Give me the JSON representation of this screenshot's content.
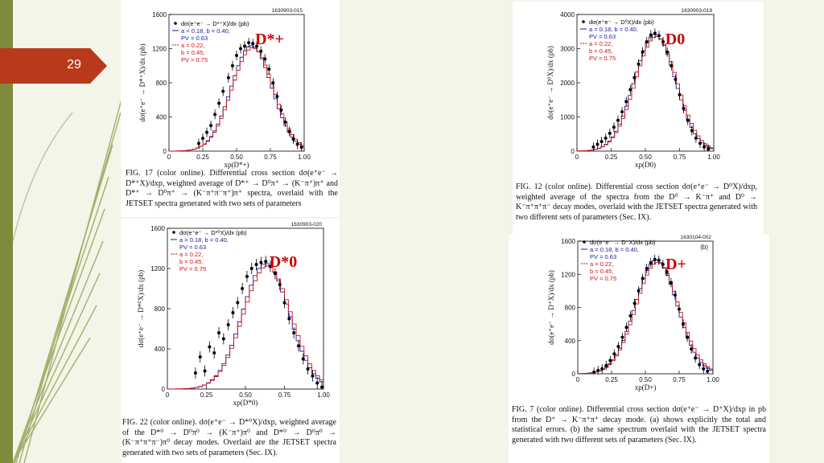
{
  "slide": {
    "number": "29"
  },
  "colors": {
    "badge": "#b83a1b",
    "stripe": "#7f8a3c",
    "bg": "#f3f5e8",
    "data": "#000000",
    "setA": "#1a1aa6",
    "setB": "#d01010",
    "label": "#d00000"
  },
  "legend": {
    "p1": "P",
    "setA": [
      "a = 0.18, b = 0.40,",
      "PV = 0.63"
    ],
    "setB": [
      "a = 0.22,",
      "b = 0.45,",
      "PV = 0.75"
    ]
  },
  "charts": [
    {
      "id": "dstar-plus",
      "code": "1630903-015",
      "corner_label": "D*+",
      "legend_data": "dσ(e⁺e⁻ → D*⁺X)/dx (pb)",
      "ylabel": "dσ(e⁺e⁻ → D*⁺X)/dx (pb)",
      "xlabel": "xp(D*+)",
      "caption": "FIG. 17 (color online). Differential cross section dσ(e⁺e⁻ → D*⁺X)/dxp, weighted average of D*⁺ → D⁰π⁺ → (K⁻π⁺)π⁺ and D*⁺ → D⁰π⁺ → (K⁻π⁺π⁻π⁺)π⁺ spectra, overlaid with the JETSET spectra generated with two sets of parameters",
      "chart_data": {
        "type": "line",
        "xlim": [
          0,
          1
        ],
        "ylim": [
          0,
          1600
        ],
        "xticks": [
          "0",
          "0.25",
          "0.50",
          "0.75",
          "1.00"
        ],
        "yticks": [
          "0",
          "400",
          "800",
          "1200",
          "1600"
        ],
        "data": [
          [
            0.22,
            90
          ],
          [
            0.25,
            150
          ],
          [
            0.28,
            220
          ],
          [
            0.31,
            300
          ],
          [
            0.34,
            430
          ],
          [
            0.37,
            560
          ],
          [
            0.4,
            700
          ],
          [
            0.44,
            860
          ],
          [
            0.47,
            1000
          ],
          [
            0.5,
            1120
          ],
          [
            0.53,
            1200
          ],
          [
            0.56,
            1230
          ],
          [
            0.59,
            1270
          ],
          [
            0.62,
            1260
          ],
          [
            0.65,
            1230
          ],
          [
            0.68,
            1170
          ],
          [
            0.71,
            1080
          ],
          [
            0.74,
            960
          ],
          [
            0.77,
            800
          ],
          [
            0.8,
            640
          ],
          [
            0.83,
            480
          ],
          [
            0.86,
            340
          ],
          [
            0.89,
            230
          ],
          [
            0.92,
            140
          ],
          [
            0.95,
            80
          ],
          [
            0.98,
            45
          ]
        ],
        "curve_peak": 0.61,
        "curve_height": 1235,
        "curve_width": 0.15
      }
    },
    {
      "id": "dzero",
      "code": "1630903-019",
      "corner_label": "D0",
      "legend_data": "dσ(e⁺e⁻ → D⁰X)/dx (pb)",
      "ylabel": "dσ(e⁺e⁻ → D⁰X)/dx (pb)",
      "xlabel": "xp(D0)",
      "caption": "FIG. 12 (color online). Differential cross section dσ(e⁺e⁻ → D⁰X)/dxp, weighted average of the spectra from the D⁰ → K⁻π⁺ and D⁰ → K⁻π⁺π⁺π⁻ decay modes, overlaid with the JETSET spectra generated with two different sets of parameters (Sec. IX).",
      "chart_data": {
        "type": "line",
        "xlim": [
          0,
          1
        ],
        "ylim": [
          0,
          4000
        ],
        "xticks": [
          "0",
          "0.25",
          "0.50",
          "0.75",
          "1.00"
        ],
        "yticks": [
          "0",
          "1000",
          "2000",
          "3000",
          "4000"
        ],
        "data": [
          [
            0.12,
            120
          ],
          [
            0.15,
            200
          ],
          [
            0.18,
            280
          ],
          [
            0.21,
            380
          ],
          [
            0.24,
            520
          ],
          [
            0.27,
            700
          ],
          [
            0.3,
            900
          ],
          [
            0.33,
            1150
          ],
          [
            0.36,
            1450
          ],
          [
            0.39,
            1800
          ],
          [
            0.42,
            2150
          ],
          [
            0.45,
            2550
          ],
          [
            0.48,
            2900
          ],
          [
            0.51,
            3200
          ],
          [
            0.54,
            3400
          ],
          [
            0.57,
            3450
          ],
          [
            0.6,
            3380
          ],
          [
            0.63,
            3200
          ],
          [
            0.66,
            2900
          ],
          [
            0.69,
            2500
          ],
          [
            0.72,
            2100
          ],
          [
            0.75,
            1650
          ],
          [
            0.78,
            1250
          ],
          [
            0.81,
            900
          ],
          [
            0.84,
            600
          ],
          [
            0.87,
            380
          ],
          [
            0.9,
            230
          ],
          [
            0.93,
            120
          ],
          [
            0.96,
            60
          ]
        ],
        "curve_peak": 0.57,
        "curve_height": 3420,
        "curve_width": 0.15
      }
    },
    {
      "id": "dstar-zero",
      "code": "1630903-020",
      "corner_label": "D*0",
      "legend_data": "dσ(e⁺e⁻ → D*⁰X)/dx (pb)",
      "ylabel": "dσ(e⁺e⁻ → D*⁰X)/dx (pb)",
      "xlabel": "xp(D*0)",
      "caption": "FIG. 22 (color online). dσ(e⁺e⁻ → D*⁰X)/dxp, weighted average of the D*⁰ → D⁰π⁰ → (K⁻π⁺)π⁰ and D*⁰ → D⁰π⁰ → (K⁻π⁺π⁺π⁻)π⁰ decay modes. Overlaid are the JETSET spectra generated with two sets of parameters (Sec. IX).",
      "chart_data": {
        "type": "line",
        "xlim": [
          0,
          1
        ],
        "ylim": [
          0,
          1600
        ],
        "xticks": [
          "0",
          "0.25",
          "0.50",
          "0.75",
          "1.00"
        ],
        "yticks": [
          "0",
          "400",
          "800",
          "1200",
          "1600"
        ],
        "data": [
          [
            0.18,
            160
          ],
          [
            0.21,
            320
          ],
          [
            0.24,
            180
          ],
          [
            0.27,
            420
          ],
          [
            0.3,
            360
          ],
          [
            0.33,
            560
          ],
          [
            0.36,
            500
          ],
          [
            0.39,
            640
          ],
          [
            0.42,
            760
          ],
          [
            0.45,
            860
          ],
          [
            0.48,
            1000
          ],
          [
            0.51,
            1120
          ],
          [
            0.54,
            1200
          ],
          [
            0.57,
            1240
          ],
          [
            0.6,
            1260
          ],
          [
            0.63,
            1270
          ],
          [
            0.66,
            1220
          ],
          [
            0.69,
            1150
          ],
          [
            0.72,
            1040
          ],
          [
            0.75,
            860
          ],
          [
            0.78,
            700
          ],
          [
            0.81,
            560
          ],
          [
            0.84,
            430
          ],
          [
            0.87,
            300
          ],
          [
            0.9,
            200
          ],
          [
            0.93,
            130
          ],
          [
            0.96,
            60
          ],
          [
            0.99,
            20
          ]
        ],
        "curve_peak": 0.63,
        "curve_height": 1250,
        "curve_width": 0.15
      }
    },
    {
      "id": "dplus",
      "code": "1630104-002",
      "corner_label": "D+",
      "panel_tag": "(b)",
      "legend_data": "dσ(e⁺e⁻ → D⁺X)/dx (pb)",
      "ylabel": "dσ(e⁺e⁻ → D⁺X)/dx (pb)",
      "xlabel": "xp(D+)",
      "caption": "FIG. 7 (color online). Differential cross section dσ(e⁺e⁻ → D⁺X)/dxp in pb from the D⁺ → K⁻π⁺π⁺ decay mode. (a) shows explicitly the total and statistical errors. (b) the same spectrum overlaid with the JETSET spectra generated with two different sets of parameters (Sec. IX).",
      "chart_data": {
        "type": "line",
        "xlim": [
          0,
          1
        ],
        "ylim": [
          0,
          1600
        ],
        "xticks": [
          "0",
          "0.25",
          "0.50",
          "0.75",
          "1.00"
        ],
        "yticks": [
          "0",
          "400",
          "800",
          "1200",
          "1600"
        ],
        "data": [
          [
            0.12,
            20
          ],
          [
            0.15,
            40
          ],
          [
            0.18,
            60
          ],
          [
            0.21,
            100
          ],
          [
            0.24,
            160
          ],
          [
            0.27,
            240
          ],
          [
            0.3,
            330
          ],
          [
            0.33,
            440
          ],
          [
            0.36,
            560
          ],
          [
            0.39,
            700
          ],
          [
            0.42,
            850
          ],
          [
            0.45,
            1000
          ],
          [
            0.48,
            1150
          ],
          [
            0.51,
            1270
          ],
          [
            0.54,
            1340
          ],
          [
            0.57,
            1380
          ],
          [
            0.6,
            1370
          ],
          [
            0.63,
            1320
          ],
          [
            0.66,
            1230
          ],
          [
            0.69,
            1100
          ],
          [
            0.72,
            950
          ],
          [
            0.75,
            780
          ],
          [
            0.78,
            600
          ],
          [
            0.81,
            440
          ],
          [
            0.84,
            300
          ],
          [
            0.87,
            190
          ],
          [
            0.9,
            110
          ],
          [
            0.93,
            60
          ],
          [
            0.96,
            30
          ]
        ],
        "curve_peak": 0.58,
        "curve_height": 1370,
        "curve_width": 0.155
      }
    }
  ]
}
